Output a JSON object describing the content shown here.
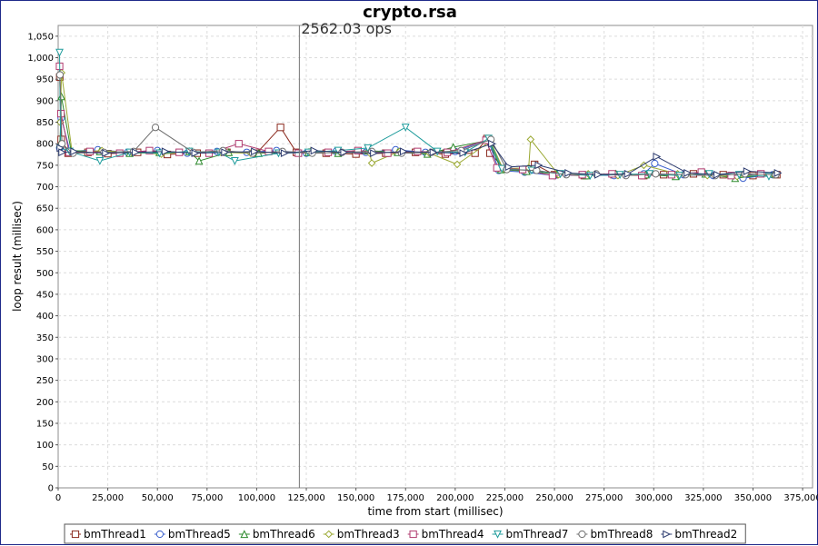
{
  "chart_data": {
    "type": "line",
    "title": "crypto.rsa",
    "xlabel": "time from start (millisec)",
    "ylabel": "loop result (millisec)",
    "xlim": [
      0,
      380000
    ],
    "ylim": [
      0,
      1075
    ],
    "x_ticks": [
      0,
      25000,
      50000,
      75000,
      100000,
      125000,
      150000,
      175000,
      200000,
      225000,
      250000,
      275000,
      300000,
      325000,
      350000,
      375000
    ],
    "x_tick_labels": [
      "0",
      "25,000",
      "50,000",
      "75,000",
      "100,000",
      "125,000",
      "150,000",
      "175,000",
      "200,000",
      "225,000",
      "250,000",
      "275,000",
      "300,000",
      "325,000",
      "350,000",
      "375,000"
    ],
    "y_ticks": [
      0,
      50,
      100,
      150,
      200,
      250,
      300,
      350,
      400,
      450,
      500,
      550,
      600,
      650,
      700,
      750,
      800,
      850,
      900,
      950,
      1000,
      1050
    ],
    "y_tick_labels": [
      "0",
      "50",
      "100",
      "150",
      "200",
      "250",
      "300",
      "350",
      "400",
      "450",
      "500",
      "550",
      "600",
      "650",
      "700",
      "750",
      "800",
      "850",
      "900",
      "950",
      "1,000",
      "1,050"
    ],
    "grid": true,
    "legend_position": "bottom",
    "marker_line": {
      "x": 121500,
      "label": "2562.03 ops"
    },
    "series": [
      {
        "name": "bmThread1",
        "color": "#8b2a1e",
        "marker": "square",
        "x": [
          800,
          1500,
          5000,
          15000,
          25000,
          40000,
          55000,
          70000,
          85000,
          100000,
          112000,
          120000,
          135000,
          150000,
          165000,
          180000,
          195000,
          210000,
          216000,
          217500,
          225000,
          235000,
          240000,
          250000,
          265000,
          280000,
          295000,
          305000,
          320000,
          335000,
          350000,
          362000
        ],
        "y": [
          955,
          810,
          778,
          780,
          777,
          780,
          775,
          778,
          780,
          778,
          838,
          780,
          778,
          776,
          778,
          780,
          776,
          778,
          812,
          778,
          742,
          740,
          752,
          728,
          726,
          728,
          726,
          728,
          730,
          728,
          726,
          728
        ]
      },
      {
        "name": "bmThread5",
        "color": "#3a5fcd",
        "marker": "circle",
        "x": [
          800,
          1500,
          6000,
          20000,
          35000,
          50000,
          65000,
          80000,
          95000,
          110000,
          125000,
          140000,
          155000,
          170000,
          185000,
          200000,
          216500,
          222000,
          235000,
          250000,
          265000,
          280000,
          295000,
          300500,
          315000,
          330000,
          345000,
          360000
        ],
        "y": [
          790,
          860,
          782,
          786,
          780,
          784,
          778,
          782,
          780,
          784,
          778,
          782,
          780,
          786,
          780,
          782,
          810,
          738,
          734,
          726,
          728,
          726,
          730,
          754,
          728,
          726,
          720,
          728
        ]
      },
      {
        "name": "bmThread6",
        "color": "#2e8b2e",
        "marker": "triangle-up",
        "x": [
          900,
          1600,
          6500,
          21000,
          36000,
          51000,
          66000,
          71000,
          86000,
          101000,
          126000,
          141000,
          156000,
          171000,
          186000,
          199000,
          217000,
          223000,
          236000,
          251000,
          266000,
          281000,
          296000,
          311000,
          326000,
          341000,
          361000
        ],
        "y": [
          800,
          910,
          784,
          782,
          778,
          780,
          782,
          760,
          780,
          778,
          780,
          778,
          784,
          780,
          776,
          792,
          808,
          740,
          736,
          730,
          726,
          730,
          728,
          724,
          730,
          720,
          730
        ]
      },
      {
        "name": "bmThread3",
        "color": "#9aa832",
        "marker": "diamond",
        "x": [
          1000,
          1700,
          7000,
          22000,
          37000,
          52000,
          67000,
          82000,
          97000,
          127000,
          142000,
          157000,
          158000,
          172000,
          187000,
          201000,
          217800,
          224000,
          237000,
          238000,
          252000,
          267000,
          282000,
          295000,
          312000,
          327000,
          342000,
          360500
        ],
        "y": [
          850,
          965,
          780,
          784,
          780,
          776,
          782,
          780,
          778,
          782,
          780,
          778,
          755,
          782,
          778,
          752,
          806,
          742,
          744,
          810,
          728,
          730,
          726,
          750,
          730,
          726,
          724,
          728
        ]
      },
      {
        "name": "bmThread4",
        "color": "#b03a6e",
        "marker": "square",
        "x": [
          700,
          1400,
          5500,
          16000,
          31000,
          46000,
          61000,
          76000,
          91000,
          106000,
          121000,
          136000,
          151000,
          166000,
          181000,
          196000,
          215500,
          221000,
          234000,
          249000,
          264000,
          279000,
          294000,
          309000,
          324000,
          339000,
          354000
        ],
        "y": [
          980,
          870,
          780,
          782,
          778,
          784,
          780,
          778,
          800,
          782,
          778,
          780,
          784,
          778,
          782,
          780,
          808,
          744,
          740,
          726,
          728,
          730,
          726,
          728,
          734,
          726,
          730
        ]
      },
      {
        "name": "bmThread7",
        "color": "#1f9c9c",
        "marker": "triangle-down",
        "x": [
          700,
          1300,
          5800,
          21000,
          36000,
          51000,
          66000,
          81000,
          89000,
          111000,
          126000,
          141000,
          156000,
          175000,
          191000,
          205000,
          216800,
          223500,
          238500,
          253000,
          268000,
          283000,
          298000,
          313000,
          328000,
          343000,
          358000
        ],
        "y": [
          1012,
          790,
          782,
          760,
          780,
          778,
          782,
          780,
          760,
          778,
          780,
          784,
          790,
          838,
          782,
          780,
          812,
          742,
          738,
          730,
          726,
          728,
          730,
          726,
          730,
          728,
          724
        ]
      },
      {
        "name": "bmThread8",
        "color": "#6e6e6e",
        "marker": "circle",
        "x": [
          900,
          1900,
          7500,
          23000,
          38000,
          49000,
          68000,
          83000,
          98000,
          113000,
          128000,
          143000,
          158000,
          173000,
          188000,
          203000,
          218000,
          226000,
          241000,
          256000,
          271000,
          286000,
          301000,
          316000,
          331000,
          346000,
          361500
        ],
        "y": [
          960,
          800,
          778,
          780,
          782,
          838,
          780,
          784,
          778,
          782,
          778,
          780,
          782,
          778,
          780,
          784,
          810,
          740,
          738,
          728,
          730,
          726,
          730,
          728,
          726,
          730,
          728
        ]
      },
      {
        "name": "bmThread2",
        "color": "#2b3a6e",
        "marker": "triangle-right",
        "x": [
          1100,
          2000,
          8000,
          24000,
          39000,
          54000,
          69000,
          84000,
          99000,
          114000,
          129000,
          144000,
          159000,
          174000,
          189000,
          204000,
          218500,
          227000,
          242000,
          257000,
          272000,
          287000,
          301500,
          317000,
          332000,
          347000,
          362500
        ],
        "y": [
          790,
          780,
          782,
          778,
          780,
          782,
          778,
          780,
          782,
          778,
          784,
          780,
          778,
          782,
          780,
          778,
          800,
          746,
          750,
          732,
          728,
          730,
          770,
          732,
          728,
          736,
          732
        ]
      }
    ]
  }
}
